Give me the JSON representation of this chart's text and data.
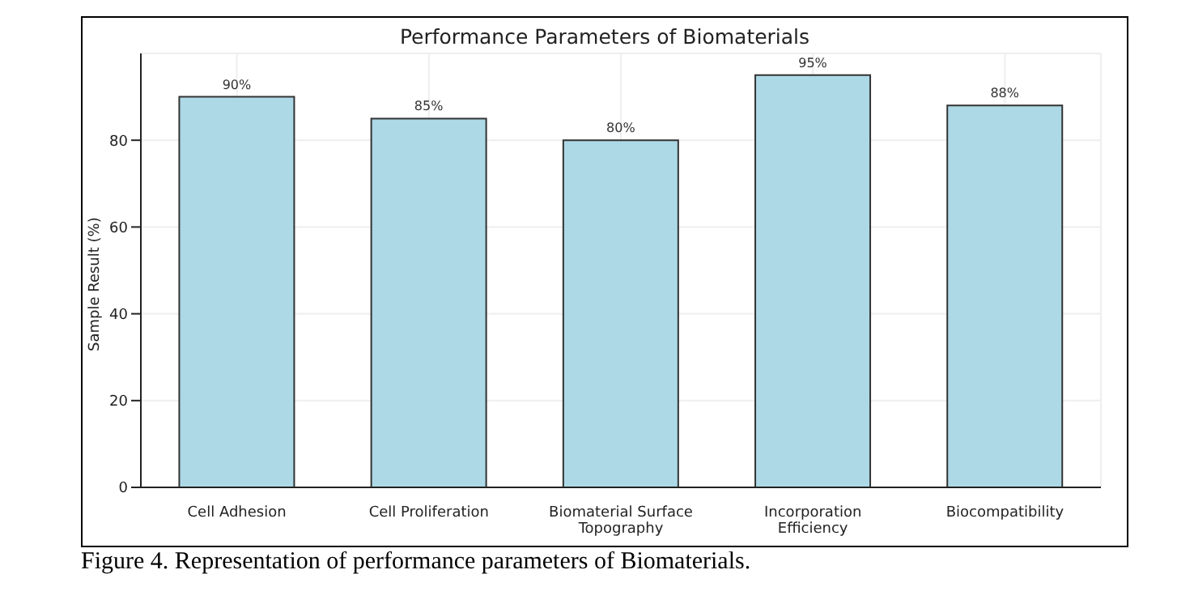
{
  "chart_data": {
    "type": "bar",
    "title": "Performance Parameters of Biomaterials",
    "ylabel": "Sample Result (%)",
    "categories": [
      "Cell Adhesion",
      "Cell Proliferation",
      "Biomaterial Surface Topography",
      "Incorporation Efficiency",
      "Biocompatibility"
    ],
    "values": [
      90,
      85,
      80,
      95,
      88
    ],
    "value_labels": [
      "90%",
      "85%",
      "80%",
      "95%",
      "88%"
    ],
    "color": "#add8e6",
    "ylim": [
      0,
      100
    ],
    "yticks": [
      0,
      20,
      40,
      60,
      80
    ],
    "grid": true,
    "annotations": [
      "Figure 4. Representation of performance parameters of Biomaterials."
    ]
  }
}
